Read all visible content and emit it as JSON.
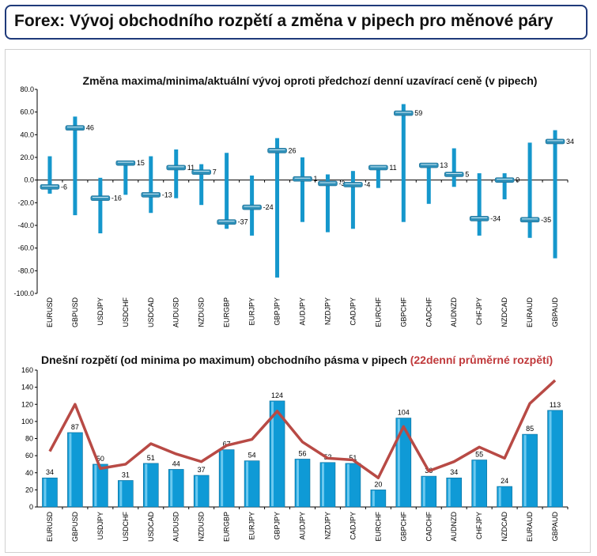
{
  "header": {
    "title": "Forex: Vývoj obchodního rozpětí a změna v pipech pro měnové páry"
  },
  "chart_data": [
    {
      "type": "range",
      "title": "Změna maxima/minima/aktuální vývoj oproti předchozí denní uzavírací ceně (v pipech)",
      "categories": [
        "EURUSD",
        "GBPUSD",
        "USDJPY",
        "USDCHF",
        "USDCAD",
        "AUDUSD",
        "NZDUSD",
        "EURGBP",
        "EURJPY",
        "GBPJPY",
        "AUDJPY",
        "NZDJPY",
        "CADJPY",
        "EURCHF",
        "GBPCHF",
        "CADCHF",
        "AUDNZD",
        "CHFJPY",
        "NZDCAD",
        "EURAUD",
        "GBPAUD"
      ],
      "high": [
        21,
        56,
        2,
        16,
        21,
        27,
        14,
        24,
        4,
        37,
        20,
        5,
        8,
        12,
        67,
        14,
        28,
        6,
        6,
        33,
        44
      ],
      "low": [
        -12,
        -31,
        -47,
        -13,
        -29,
        -16,
        -22,
        -43,
        -49,
        -86,
        -37,
        -46,
        -43,
        -7,
        -37,
        -21,
        -6,
        -49,
        -17,
        -51,
        -69
      ],
      "current": [
        -6,
        46,
        -16,
        15,
        -13,
        11,
        7,
        -37,
        -24,
        26,
        1,
        -3,
        -4,
        11,
        59,
        13,
        5,
        -34,
        0,
        -35,
        34
      ],
      "labels": [
        "-6",
        "46",
        "-16",
        "15",
        "-13",
        "11",
        "7",
        "-37",
        "-24",
        "26",
        "1",
        "-3",
        "-4",
        "11",
        "59",
        "13",
        "5",
        "-34",
        "0",
        "-35",
        "34"
      ],
      "ylim": [
        -100,
        80
      ],
      "yticks": [
        "80.0",
        "60.0",
        "40.0",
        "20.0",
        "0.0",
        "-20.0",
        "-40.0",
        "-60.0",
        "-80.0",
        "-100.0"
      ],
      "colors": {
        "bar": "#1597cc",
        "marker": "#2e8fb8"
      }
    },
    {
      "type": "bar+line",
      "title": "Dnešní rozpětí (od minima po maximum) obchodního pásma v pipech",
      "title_highlight": "(22denní průměrné rozpětí)",
      "categories": [
        "EURUSD",
        "GBPUSD",
        "USDJPY",
        "USDCHF",
        "USDCAD",
        "AUDUSD",
        "NZDUSD",
        "EURGBP",
        "EURJPY",
        "GBPJPY",
        "AUDJPY",
        "NZDJPY",
        "CADJPY",
        "EURCHF",
        "GBPCHF",
        "CADCHF",
        "AUDNZD",
        "CHFJPY",
        "NZDCAD",
        "EURAUD",
        "GBPAUD"
      ],
      "values": [
        34,
        87,
        50,
        31,
        51,
        44,
        37,
        67,
        54,
        124,
        56,
        52,
        51,
        20,
        104,
        36,
        34,
        55,
        24,
        85,
        113
      ],
      "labels": [
        "34",
        "87",
        "50",
        "31",
        "51",
        "44",
        "37",
        "67",
        "54",
        "124",
        "56",
        "52",
        "51",
        "20",
        "104",
        "36",
        "34",
        "55",
        "24",
        "85",
        "113"
      ],
      "average": [
        65,
        120,
        45,
        50,
        74,
        62,
        53,
        72,
        79,
        112,
        76,
        57,
        55,
        34,
        94,
        42,
        53,
        70,
        57,
        121,
        148
      ],
      "ylim": [
        0,
        160
      ],
      "yticks": [
        "160",
        "140",
        "120",
        "100",
        "80",
        "60",
        "40",
        "20",
        "0"
      ],
      "colors": {
        "bar": "#0f9ad6",
        "line": "#b84a45",
        "highlight": "#c0393b"
      }
    }
  ]
}
